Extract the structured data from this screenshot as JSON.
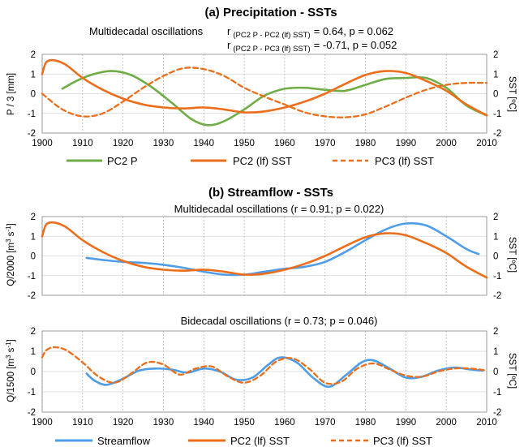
{
  "colors": {
    "green": "#70ad47",
    "orange": "#ed6e1a",
    "blue": "#4d9de8"
  },
  "panel_a": {
    "title": "(a)   Precipitation - SSTs",
    "stats_label": "Multidecadal oscillations",
    "stats_line1": {
      "r": "r",
      "sub": "(PC2 P - PC2 (lf) SST)",
      "val": "= 0.64,  p = 0.062"
    },
    "stats_line2": {
      "r": "r",
      "sub": "(PC2 P - PC3 (lf) SST)",
      "val": "= -0.71, p = 0.052"
    },
    "ylabel_left": "P / 3 [mm]",
    "ylabel_right": "SST [ºC]",
    "legend": [
      "PC2 P",
      "PC2 (lf) SST",
      "PC3 (lf) SST"
    ]
  },
  "panel_b": {
    "title": "(b)   Streamflow - SSTs",
    "top_subtitle": "Multidecadal oscillations  (r = 0.91; p = 0.022)",
    "top_ylabel": {
      "base": "Q/2000  [m",
      "sup1": "3",
      "mid": " s",
      "sup2": "-1",
      "end": "]"
    },
    "top_ylabel_right": "SST [ºC]",
    "bottom_subtitle": "Bidecadal oscillations  (r = 0.73; p = 0.046)",
    "bottom_ylabel": {
      "base": "Q/1500  [m",
      "sup1": "3",
      "mid": " s",
      "sup2": "-1",
      "end": "]"
    },
    "bottom_ylabel_right": "SST [ºC]",
    "legend": [
      "Streamflow",
      "PC2 (lf) SST",
      "PC3 (lf) SST"
    ]
  },
  "chart_data": [
    {
      "type": "line",
      "title": "Precipitation - SSTs",
      "xlim": [
        1900,
        2010
      ],
      "ylim": [
        -2,
        2
      ],
      "x_ticks": [
        "1900",
        "1910",
        "1920",
        "1930",
        "1940",
        "1950",
        "1960",
        "1970",
        "1980",
        "1990",
        "2000",
        "2010"
      ],
      "y_ticks": [
        "2",
        "1",
        "0",
        "-1",
        "-2"
      ],
      "y2_ticks": [
        "2",
        "1",
        "0",
        "-1",
        "-2"
      ],
      "series": [
        {
          "name": "PC2 P",
          "color": "#70ad47",
          "style": "solid",
          "x": [
            1905,
            1908,
            1912,
            1917,
            1922,
            1927,
            1932,
            1937,
            1941,
            1945,
            1950,
            1955,
            1960,
            1965,
            1970,
            1975,
            1980,
            1985,
            1990,
            1995,
            2000,
            2005,
            2010
          ],
          "y": [
            0.25,
            0.6,
            0.95,
            1.15,
            0.95,
            0.35,
            -0.45,
            -1.3,
            -1.6,
            -1.4,
            -0.8,
            -0.1,
            0.25,
            0.3,
            0.2,
            0.15,
            0.45,
            0.75,
            0.8,
            0.8,
            0.3,
            -0.6,
            -1.1
          ]
        },
        {
          "name": "PC2 (lf) SST",
          "color": "#ed6e1a",
          "style": "solid",
          "x": [
            1900,
            1901,
            1903,
            1906,
            1910,
            1915,
            1920,
            1925,
            1930,
            1935,
            1940,
            1945,
            1950,
            1955,
            1960,
            1965,
            1970,
            1975,
            1980,
            1985,
            1990,
            1995,
            2000,
            2005,
            2010
          ],
          "y": [
            1.0,
            1.6,
            1.7,
            1.45,
            0.8,
            0.2,
            -0.25,
            -0.55,
            -0.7,
            -0.75,
            -0.7,
            -0.8,
            -0.95,
            -0.9,
            -0.7,
            -0.4,
            0.0,
            0.5,
            0.95,
            1.15,
            1.05,
            0.65,
            0.15,
            -0.55,
            -1.1
          ]
        },
        {
          "name": "PC3 (lf) SST",
          "color": "#ed6e1a",
          "style": "dashed",
          "x": [
            1900,
            1905,
            1910,
            1915,
            1920,
            1925,
            1930,
            1935,
            1940,
            1945,
            1950,
            1955,
            1960,
            1965,
            1970,
            1975,
            1980,
            1985,
            1990,
            1995,
            2000,
            2005,
            2010
          ],
          "y": [
            0.0,
            -0.8,
            -1.15,
            -1.0,
            -0.4,
            0.3,
            0.9,
            1.3,
            1.25,
            0.9,
            0.3,
            -0.15,
            -0.55,
            -0.95,
            -1.15,
            -1.2,
            -1.05,
            -0.65,
            -0.2,
            0.2,
            0.45,
            0.55,
            0.55
          ]
        }
      ]
    },
    {
      "type": "line",
      "title": "Multidecadal oscillations",
      "xlim": [
        1900,
        2010
      ],
      "ylim": [
        -2,
        2
      ],
      "x_ticks": [
        "1900",
        "1910",
        "1920",
        "1930",
        "1940",
        "1950",
        "1960",
        "1970",
        "1980",
        "1990",
        "2000",
        "2010"
      ],
      "y_ticks": [
        "2",
        "1",
        "0",
        "-1",
        "-2"
      ],
      "y2_ticks": [
        "2",
        "1",
        "0",
        "-1",
        "-2"
      ],
      "series": [
        {
          "name": "Streamflow",
          "color": "#4d9de8",
          "style": "solid",
          "x": [
            1911,
            1915,
            1920,
            1925,
            1930,
            1935,
            1940,
            1945,
            1950,
            1955,
            1960,
            1965,
            1970,
            1975,
            1980,
            1985,
            1990,
            1995,
            2000,
            2005,
            2008
          ],
          "y": [
            -0.1,
            -0.2,
            -0.3,
            -0.35,
            -0.45,
            -0.6,
            -0.8,
            -0.95,
            -0.95,
            -0.8,
            -0.65,
            -0.55,
            -0.3,
            0.2,
            0.8,
            1.35,
            1.65,
            1.55,
            1.0,
            0.35,
            0.1
          ]
        },
        {
          "name": "PC2 (lf) SST",
          "color": "#ed6e1a",
          "style": "solid",
          "x": [
            1900,
            1901,
            1903,
            1906,
            1910,
            1915,
            1920,
            1925,
            1930,
            1935,
            1940,
            1945,
            1950,
            1955,
            1960,
            1965,
            1970,
            1975,
            1980,
            1985,
            1990,
            1995,
            2000,
            2005,
            2010
          ],
          "y": [
            1.0,
            1.6,
            1.7,
            1.45,
            0.8,
            0.2,
            -0.25,
            -0.55,
            -0.7,
            -0.75,
            -0.7,
            -0.8,
            -0.95,
            -0.9,
            -0.7,
            -0.4,
            0.0,
            0.5,
            0.95,
            1.15,
            1.05,
            0.65,
            0.15,
            -0.55,
            -1.1
          ]
        }
      ]
    },
    {
      "type": "line",
      "title": "Bidecadal oscillations",
      "xlim": [
        1900,
        2010
      ],
      "ylim": [
        -2,
        2
      ],
      "x_ticks": [
        "1900",
        "1910",
        "1920",
        "1930",
        "1940",
        "1950",
        "1960",
        "1970",
        "1980",
        "1990",
        "2000",
        "2010"
      ],
      "y_ticks": [
        "2",
        "1",
        "0",
        "-1",
        "-2"
      ],
      "y2_ticks": [
        "2",
        "1",
        "0",
        "-1",
        "-2"
      ],
      "series": [
        {
          "name": "Streamflow",
          "color": "#4d9de8",
          "style": "solid",
          "x": [
            1911,
            1913,
            1916,
            1920,
            1924,
            1928,
            1932,
            1936,
            1940,
            1944,
            1948,
            1952,
            1956,
            1959,
            1963,
            1967,
            1971,
            1975,
            1979,
            1982,
            1986,
            1990,
            1994,
            1998,
            2002,
            2006,
            2009
          ],
          "y": [
            -0.1,
            -0.45,
            -0.65,
            -0.35,
            0.05,
            0.15,
            0.1,
            -0.05,
            0.15,
            0.0,
            -0.4,
            -0.3,
            0.35,
            0.7,
            0.45,
            -0.3,
            -0.75,
            -0.2,
            0.45,
            0.55,
            0.15,
            -0.3,
            -0.25,
            0.05,
            0.2,
            0.1,
            0.05
          ]
        },
        {
          "name": "PC3 (lf) SST",
          "color": "#ed6e1a",
          "style": "dashed",
          "x": [
            1900,
            1901,
            1903,
            1906,
            1910,
            1914,
            1918,
            1922,
            1926,
            1930,
            1934,
            1938,
            1942,
            1946,
            1950,
            1954,
            1958,
            1962,
            1966,
            1970,
            1974,
            1978,
            1982,
            1986,
            1990,
            1994,
            1998,
            2002,
            2006,
            2010
          ],
          "y": [
            0.7,
            1.05,
            1.2,
            1.05,
            0.45,
            -0.25,
            -0.55,
            -0.1,
            0.45,
            0.35,
            -0.15,
            0.15,
            0.25,
            -0.25,
            -0.55,
            -0.2,
            0.5,
            0.65,
            0.15,
            -0.55,
            -0.5,
            0.15,
            0.4,
            0.1,
            -0.2,
            -0.25,
            0.0,
            0.15,
            0.15,
            0.05
          ]
        }
      ]
    }
  ]
}
